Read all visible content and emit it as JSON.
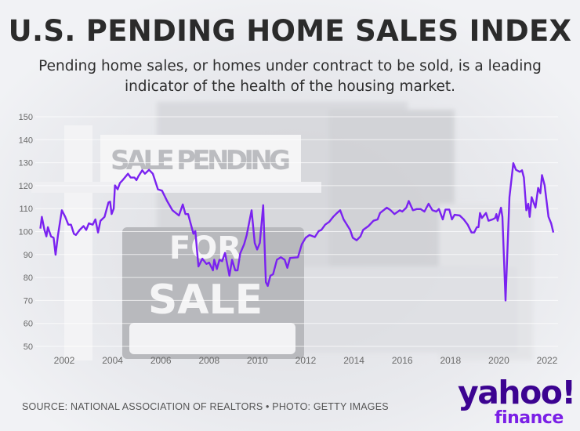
{
  "header": {
    "title": "U.S. PENDING HOME SALES INDEX",
    "subtitle_line1": "Pending home sales, or homes under contract to be sold, is a leading",
    "subtitle_line2": "indicator of the health of the housing market."
  },
  "footer": {
    "source": "SOURCE: NATIONAL ASSOCIATION OF REALTORS • PHOTO: GETTY IMAGES"
  },
  "logo": {
    "brand": "yahoo!",
    "product": "finance"
  },
  "photo_text": {
    "sign_top": "SALE PENDING",
    "sign_for": "FOR",
    "sign_sale": "SALE"
  },
  "colors": {
    "line": "#7a22f0",
    "title": "#2b2b2b",
    "logo_dark": "#3c0391",
    "logo_light": "#7a1fe6"
  },
  "chart_data": {
    "type": "line",
    "title": "U.S. PENDING HOME SALES INDEX",
    "xlabel": "",
    "ylabel": "",
    "xlim": [
      2001,
      2022.3
    ],
    "ylim": [
      50,
      150
    ],
    "grid": true,
    "yticks": [
      50,
      60,
      70,
      80,
      90,
      100,
      110,
      120,
      130,
      140,
      150
    ],
    "xticks": [
      "2002",
      "2004",
      "2006",
      "2008",
      "2010",
      "2012",
      "2014",
      "2016",
      "2018",
      "2020",
      "2022"
    ],
    "series": [
      {
        "name": "Pending Home Sales Index",
        "points": [
          [
            2001.01,
            101.3
          ],
          [
            2001.07,
            106.4
          ],
          [
            2001.18,
            100.7
          ],
          [
            2001.26,
            97.9
          ],
          [
            2001.32,
            101.9
          ],
          [
            2001.45,
            97.9
          ],
          [
            2001.56,
            97.3
          ],
          [
            2001.64,
            89.9
          ],
          [
            2001.74,
            98.5
          ],
          [
            2001.9,
            109.3
          ],
          [
            2002.04,
            106.4
          ],
          [
            2002.17,
            103.0
          ],
          [
            2002.28,
            103.0
          ],
          [
            2002.4,
            99.0
          ],
          [
            2002.48,
            98.5
          ],
          [
            2002.64,
            100.7
          ],
          [
            2002.8,
            102.4
          ],
          [
            2002.91,
            100.7
          ],
          [
            2003.02,
            103.6
          ],
          [
            2003.18,
            103.0
          ],
          [
            2003.29,
            105.3
          ],
          [
            2003.4,
            99.6
          ],
          [
            2003.5,
            104.7
          ],
          [
            2003.67,
            106.4
          ],
          [
            2003.83,
            112.7
          ],
          [
            2003.9,
            113.0
          ],
          [
            2003.96,
            107.6
          ],
          [
            2004.05,
            110.0
          ],
          [
            2004.1,
            120.1
          ],
          [
            2004.21,
            118.4
          ],
          [
            2004.31,
            121.2
          ],
          [
            2004.42,
            122.4
          ],
          [
            2004.64,
            125.2
          ],
          [
            2004.75,
            123.5
          ],
          [
            2004.91,
            123.5
          ],
          [
            2004.99,
            122.4
          ],
          [
            2005.07,
            124.1
          ],
          [
            2005.23,
            126.7
          ],
          [
            2005.34,
            125.2
          ],
          [
            2005.51,
            126.9
          ],
          [
            2005.67,
            125.2
          ],
          [
            2005.88,
            118.4
          ],
          [
            2006.05,
            117.8
          ],
          [
            2006.26,
            113.3
          ],
          [
            2006.48,
            109.3
          ],
          [
            2006.75,
            107.0
          ],
          [
            2006.91,
            111.8
          ],
          [
            2007.02,
            107.6
          ],
          [
            2007.13,
            107.6
          ],
          [
            2007.35,
            99.0
          ],
          [
            2007.43,
            100.2
          ],
          [
            2007.56,
            84.8
          ],
          [
            2007.72,
            88.2
          ],
          [
            2007.89,
            85.9
          ],
          [
            2008.0,
            86.5
          ],
          [
            2008.16,
            83.1
          ],
          [
            2008.21,
            87.7
          ],
          [
            2008.32,
            83.7
          ],
          [
            2008.43,
            87.7
          ],
          [
            2008.54,
            87.1
          ],
          [
            2008.66,
            90.7
          ],
          [
            2008.84,
            80.8
          ],
          [
            2008.95,
            87.7
          ],
          [
            2009.08,
            83.1
          ],
          [
            2009.18,
            83.1
          ],
          [
            2009.29,
            90.5
          ],
          [
            2009.45,
            94.5
          ],
          [
            2009.56,
            98.5
          ],
          [
            2009.76,
            109.3
          ],
          [
            2009.89,
            95.0
          ],
          [
            2009.99,
            92.2
          ],
          [
            2010.1,
            95.0
          ],
          [
            2010.24,
            111.5
          ],
          [
            2010.35,
            78.0
          ],
          [
            2010.43,
            76.3
          ],
          [
            2010.54,
            80.8
          ],
          [
            2010.65,
            81.4
          ],
          [
            2010.81,
            87.7
          ],
          [
            2010.97,
            88.8
          ],
          [
            2011.13,
            87.7
          ],
          [
            2011.24,
            84.2
          ],
          [
            2011.35,
            88.5
          ],
          [
            2011.68,
            88.8
          ],
          [
            2011.84,
            94.5
          ],
          [
            2012.0,
            97.3
          ],
          [
            2012.16,
            98.5
          ],
          [
            2012.38,
            97.6
          ],
          [
            2012.54,
            100.2
          ],
          [
            2012.65,
            100.7
          ],
          [
            2012.81,
            103.0
          ],
          [
            2012.97,
            104.2
          ],
          [
            2013.14,
            106.4
          ],
          [
            2013.3,
            108.1
          ],
          [
            2013.43,
            109.3
          ],
          [
            2013.57,
            105.3
          ],
          [
            2013.84,
            100.7
          ],
          [
            2013.95,
            97.3
          ],
          [
            2014.11,
            96.2
          ],
          [
            2014.27,
            97.9
          ],
          [
            2014.38,
            100.7
          ],
          [
            2014.6,
            102.4
          ],
          [
            2014.81,
            104.7
          ],
          [
            2014.98,
            105.3
          ],
          [
            2015.08,
            108.1
          ],
          [
            2015.36,
            110.4
          ],
          [
            2015.52,
            109.3
          ],
          [
            2015.68,
            107.6
          ],
          [
            2015.9,
            109.3
          ],
          [
            2016.0,
            108.7
          ],
          [
            2016.17,
            110.4
          ],
          [
            2016.27,
            113.3
          ],
          [
            2016.44,
            109.3
          ],
          [
            2016.6,
            109.8
          ],
          [
            2016.76,
            109.8
          ],
          [
            2016.92,
            108.7
          ],
          [
            2017.09,
            112.1
          ],
          [
            2017.25,
            109.3
          ],
          [
            2017.41,
            108.7
          ],
          [
            2017.52,
            109.8
          ],
          [
            2017.68,
            105.3
          ],
          [
            2017.79,
            109.6
          ],
          [
            2017.95,
            109.6
          ],
          [
            2018.06,
            105.3
          ],
          [
            2018.17,
            107.3
          ],
          [
            2018.38,
            107.0
          ],
          [
            2018.55,
            105.3
          ],
          [
            2018.71,
            103.0
          ],
          [
            2018.87,
            99.6
          ],
          [
            2018.98,
            99.6
          ],
          [
            2019.09,
            101.9
          ],
          [
            2019.16,
            101.9
          ],
          [
            2019.22,
            108.1
          ],
          [
            2019.3,
            105.9
          ],
          [
            2019.47,
            108.1
          ],
          [
            2019.57,
            104.7
          ],
          [
            2019.74,
            105.3
          ],
          [
            2019.85,
            105.9
          ],
          [
            2019.9,
            107.6
          ],
          [
            2019.95,
            104.7
          ],
          [
            2020.09,
            110.4
          ],
          [
            2020.15,
            106.4
          ],
          [
            2020.28,
            70.0
          ],
          [
            2020.44,
            115.0
          ],
          [
            2020.6,
            129.8
          ],
          [
            2020.71,
            126.9
          ],
          [
            2020.87,
            126.0
          ],
          [
            2020.96,
            126.7
          ],
          [
            2021.04,
            123.5
          ],
          [
            2021.14,
            109.3
          ],
          [
            2021.22,
            112.1
          ],
          [
            2021.28,
            106.4
          ],
          [
            2021.36,
            115.0
          ],
          [
            2021.52,
            110.4
          ],
          [
            2021.63,
            119.0
          ],
          [
            2021.72,
            116.7
          ],
          [
            2021.79,
            124.6
          ],
          [
            2021.9,
            120.1
          ],
          [
            2022.06,
            106.4
          ],
          [
            2022.17,
            103.6
          ],
          [
            2022.26,
            99.6
          ]
        ]
      }
    ]
  }
}
